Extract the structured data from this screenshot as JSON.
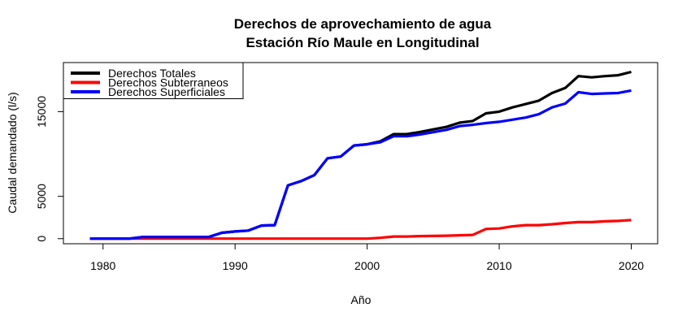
{
  "chart_data": {
    "type": "line",
    "title": "Derechos de aprovechamiento de agua",
    "subtitle": "Estación Río Maule en Longitudinal",
    "xlabel": "Año",
    "ylabel": "Caudal demandado (l/s)",
    "xlim": [
      1977,
      2022
    ],
    "ylim": [
      -600,
      20800
    ],
    "x_ticks": [
      1980,
      1990,
      2000,
      2010,
      2020
    ],
    "x_tick_labels": [
      "1980",
      "1990",
      "2000",
      "2010",
      "2020"
    ],
    "y_ticks": [
      0,
      5000,
      15000
    ],
    "y_tick_labels": [
      "0",
      "5000",
      "15000"
    ],
    "grid": false,
    "legend_position": "top-left",
    "x": [
      1979,
      1980,
      1981,
      1982,
      1983,
      1984,
      1985,
      1986,
      1987,
      1988,
      1989,
      1990,
      1991,
      1992,
      1993,
      1994,
      1995,
      1996,
      1997,
      1998,
      1999,
      2000,
      2001,
      2002,
      2003,
      2004,
      2005,
      2006,
      2007,
      2008,
      2009,
      2010,
      2011,
      2012,
      2013,
      2014,
      2015,
      2016,
      2017,
      2018,
      2019,
      2020
    ],
    "series": [
      {
        "name": "Derechos Totales",
        "color": "#000000",
        "values": [
          0,
          0,
          0,
          0,
          200,
          200,
          200,
          200,
          200,
          200,
          700,
          850,
          950,
          1550,
          1600,
          6300,
          6800,
          7500,
          9500,
          9700,
          11000,
          11150,
          11500,
          12350,
          12350,
          12600,
          12900,
          13200,
          13700,
          13900,
          14800,
          15000,
          15500,
          15900,
          16300,
          17200,
          17800,
          19200,
          19050,
          19200,
          19300,
          19700
        ]
      },
      {
        "name": "Derechos Subterraneos",
        "color": "#ff0000",
        "values": [
          0,
          0,
          0,
          0,
          0,
          0,
          0,
          0,
          0,
          0,
          0,
          0,
          0,
          0,
          0,
          0,
          0,
          0,
          0,
          0,
          0,
          0,
          100,
          250,
          250,
          300,
          320,
          350,
          400,
          450,
          1150,
          1200,
          1450,
          1600,
          1600,
          1700,
          1850,
          1950,
          1950,
          2050,
          2100,
          2200
        ]
      },
      {
        "name": "Derechos Superficiales",
        "color": "#0000ff",
        "values": [
          0,
          0,
          0,
          0,
          200,
          200,
          200,
          200,
          200,
          200,
          700,
          850,
          950,
          1550,
          1600,
          6300,
          6800,
          7500,
          9500,
          9700,
          11000,
          11150,
          11400,
          12100,
          12100,
          12300,
          12580,
          12850,
          13300,
          13450,
          13650,
          13800,
          14050,
          14300,
          14700,
          15500,
          15950,
          17300,
          17100,
          17150,
          17200,
          17500
        ]
      }
    ]
  }
}
